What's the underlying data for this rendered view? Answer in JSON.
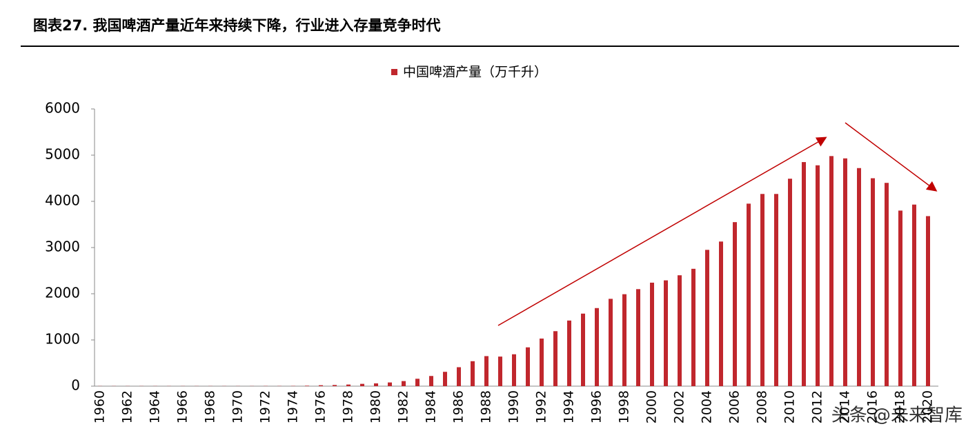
{
  "chart_data": {
    "type": "bar",
    "title": "图表27.  我国啤酒产量近年来持续下降，行业进入存量竞争时代",
    "series": [
      {
        "name": "中国啤酒产量（万千升）",
        "color": "#c0272d",
        "values": [
          3,
          3,
          3,
          3,
          3,
          3,
          3,
          3,
          3,
          3,
          3,
          3,
          4,
          4,
          5,
          10,
          20,
          25,
          35,
          50,
          60,
          80,
          110,
          160,
          220,
          310,
          410,
          540,
          650,
          640,
          690,
          840,
          1030,
          1190,
          1420,
          1570,
          1690,
          1890,
          1990,
          2100,
          2240,
          2290,
          2400,
          2540,
          2950,
          3130,
          3550,
          3950,
          4160,
          4160,
          4490,
          4850,
          4780,
          4980,
          4930,
          4720,
          4500,
          4400,
          3800,
          3930,
          3680
        ]
      }
    ],
    "categories": [
      "1960",
      null,
      "1962",
      null,
      "1964",
      null,
      "1966",
      null,
      "1968",
      null,
      "1970",
      null,
      "1972",
      null,
      "1974",
      null,
      "1976",
      null,
      "1978",
      null,
      "1980",
      null,
      "1982",
      null,
      "1984",
      null,
      "1986",
      null,
      "1988",
      null,
      "1990",
      null,
      "1992",
      null,
      "1994",
      null,
      "1996",
      null,
      "1998",
      null,
      "2000",
      null,
      "2002",
      null,
      "2004",
      null,
      "2006",
      null,
      "2008",
      null,
      "2010",
      null,
      "2012",
      null,
      "2014",
      null,
      "2016",
      null,
      "2018",
      null,
      "2020"
    ],
    "ylim": [
      0,
      6000
    ],
    "yticks": [
      0,
      1000,
      2000,
      3000,
      4000,
      5000,
      6000
    ],
    "watermark": "头条 @未来智库"
  }
}
